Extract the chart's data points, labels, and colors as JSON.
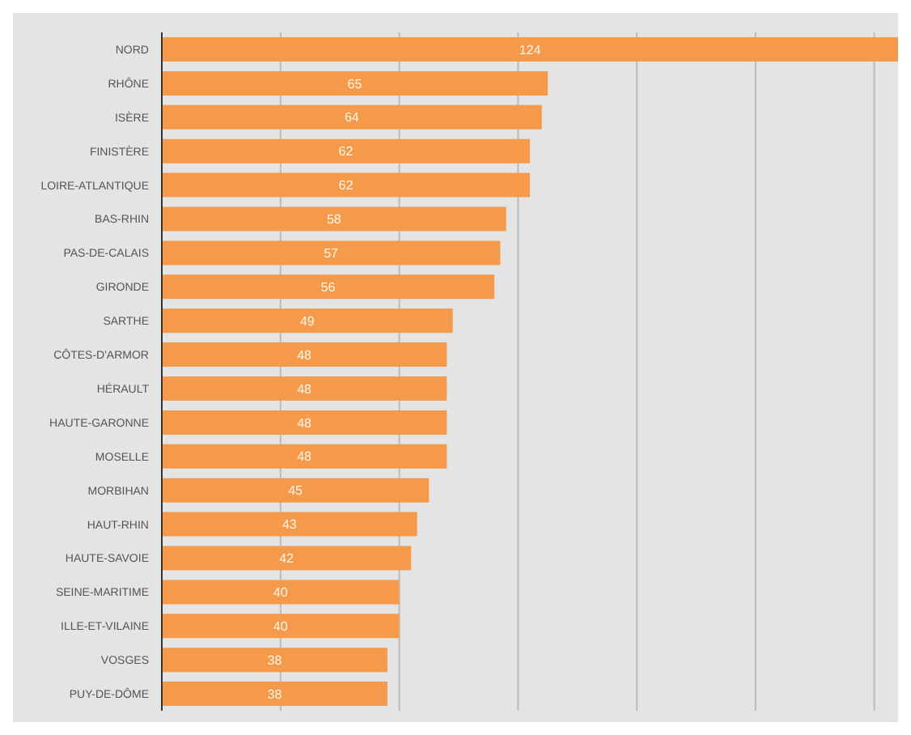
{
  "chart_data": {
    "type": "bar",
    "orientation": "horizontal",
    "categories": [
      "NORD",
      "RHÔNE",
      "ISÈRE",
      "FINISTÈRE",
      "LOIRE-ATLANTIQUE",
      "BAS-RHIN",
      "PAS-DE-CALAIS",
      "GIRONDE",
      "SARTHE",
      "CÔTES-D'ARMOR",
      "HÉRAULT",
      "HAUTE-GARONNE",
      "MOSELLE",
      "MORBIHAN",
      "HAUT-RHIN",
      "HAUTE-SAVOIE",
      "SEINE-MARITIME",
      "ILLE-ET-VILAINE",
      "VOSGES",
      "PUY-DE-DÔME"
    ],
    "values": [
      124,
      65,
      64,
      62,
      62,
      58,
      57,
      56,
      49,
      48,
      48,
      48,
      48,
      45,
      43,
      42,
      40,
      40,
      38,
      38
    ],
    "color": "#f59a4a",
    "data_labels": true,
    "xlim": [
      0,
      124
    ],
    "xticks": [
      {
        "value": 0,
        "label": null
      },
      {
        "value": 20,
        "label": null
      },
      {
        "value": 40,
        "label": null
      },
      {
        "value": 60,
        "label": null
      },
      {
        "value": 80,
        "label": null
      },
      {
        "value": 100,
        "label": null
      },
      {
        "value": 120,
        "label": null
      }
    ],
    "grid": "x",
    "tick_labels": "y"
  }
}
